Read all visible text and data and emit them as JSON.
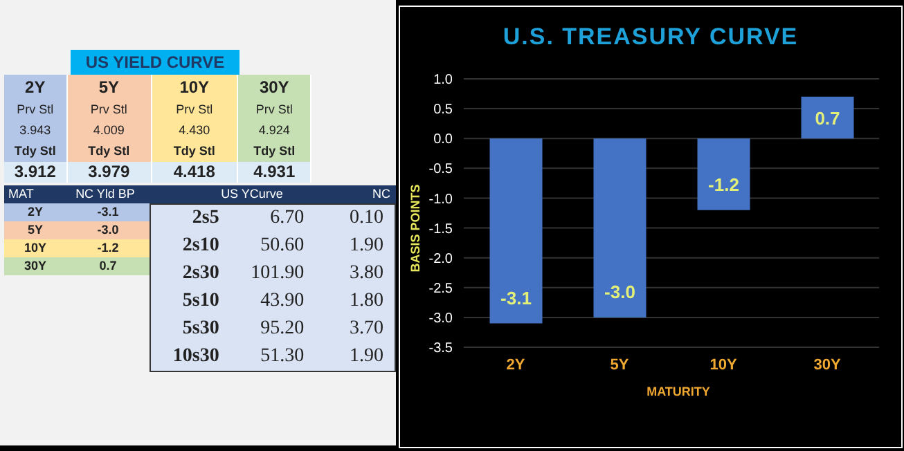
{
  "chart_data": [
    {
      "type": "heatmap",
      "title": "US YIELD CURVE",
      "categories": [
        "2Y",
        "5Y",
        "10Y",
        "30Y"
      ],
      "colors": [
        "#b4c6e7",
        "#f8cbad",
        "#ffe699",
        "#c6e0b4"
      ],
      "y_categories": [
        "Prv Stl",
        "Tdy Stl"
      ],
      "cells": [
        [
          3.943,
          4.009,
          4.43,
          4.924
        ],
        [
          3.912,
          3.979,
          4.418,
          4.931
        ]
      ],
      "cell_labels": [
        [
          "3.943",
          "4.009",
          "4.430",
          "4.924"
        ],
        [
          "3.912",
          "3.979",
          "4.418",
          "4.931"
        ]
      ]
    },
    {
      "type": "heatmap",
      "ylabel": "MAT",
      "categories": [
        "NC Yld  BP"
      ],
      "y_categories": [
        "2Y",
        "5Y",
        "10Y",
        "30Y"
      ],
      "colors": [
        "#b4c6e7",
        "#f8cbad",
        "#ffe699",
        "#c6e0b4"
      ],
      "cells": [
        [
          -3.1
        ],
        [
          -3.0
        ],
        [
          -1.2
        ],
        [
          0.7
        ]
      ],
      "cell_labels": [
        [
          "-3.1"
        ],
        [
          "-3.0"
        ],
        [
          "-1.2"
        ],
        [
          "0.7"
        ]
      ]
    },
    {
      "type": "heatmap",
      "categories": [
        "US YCurve",
        "NC"
      ],
      "y_categories": [
        "2s5",
        "2s10",
        "2s30",
        "5s10",
        "5s30",
        "10s30"
      ],
      "cells": [
        [
          6.7,
          0.1
        ],
        [
          50.6,
          1.9
        ],
        [
          101.9,
          3.8
        ],
        [
          43.9,
          1.8
        ],
        [
          95.2,
          3.7
        ],
        [
          51.3,
          1.9
        ]
      ],
      "cell_labels": [
        [
          "6.70",
          "0.10"
        ],
        [
          "50.60",
          "1.90"
        ],
        [
          "101.90",
          "3.80"
        ],
        [
          "43.90",
          "1.80"
        ],
        [
          "95.20",
          "3.70"
        ],
        [
          "51.30",
          "1.90"
        ]
      ]
    },
    {
      "type": "bar",
      "title": "U.S. TREASURY CURVE",
      "xlabel": "MATURITY",
      "ylabel": "BASIS POINTS",
      "categories": [
        "2Y",
        "5Y",
        "10Y",
        "30Y"
      ],
      "values": [
        -3.1,
        -3.0,
        -1.2,
        0.7
      ],
      "color": "#4472c4",
      "value_labels": [
        "-3.1",
        "-3.0",
        "-1.2",
        "0.7"
      ],
      "ylim": [
        -3.5,
        1.0
      ],
      "yticks": [
        {
          "value": -3.5,
          "label": "-3.5"
        },
        {
          "value": -3,
          "label": "-3.0"
        },
        {
          "value": -2.5,
          "label": "-2.5"
        },
        {
          "value": -2,
          "label": "-2.0"
        },
        {
          "value": -1.5,
          "label": "-1.5"
        },
        {
          "value": -1,
          "label": "-1.0"
        },
        {
          "value": -0.5,
          "label": "-0.5"
        },
        {
          "value": 0,
          "label": "0.0"
        },
        {
          "value": 0.5,
          "label": "0.5"
        },
        {
          "value": 1,
          "label": "1.0"
        }
      ],
      "grid": "y",
      "legend": false
    }
  ]
}
